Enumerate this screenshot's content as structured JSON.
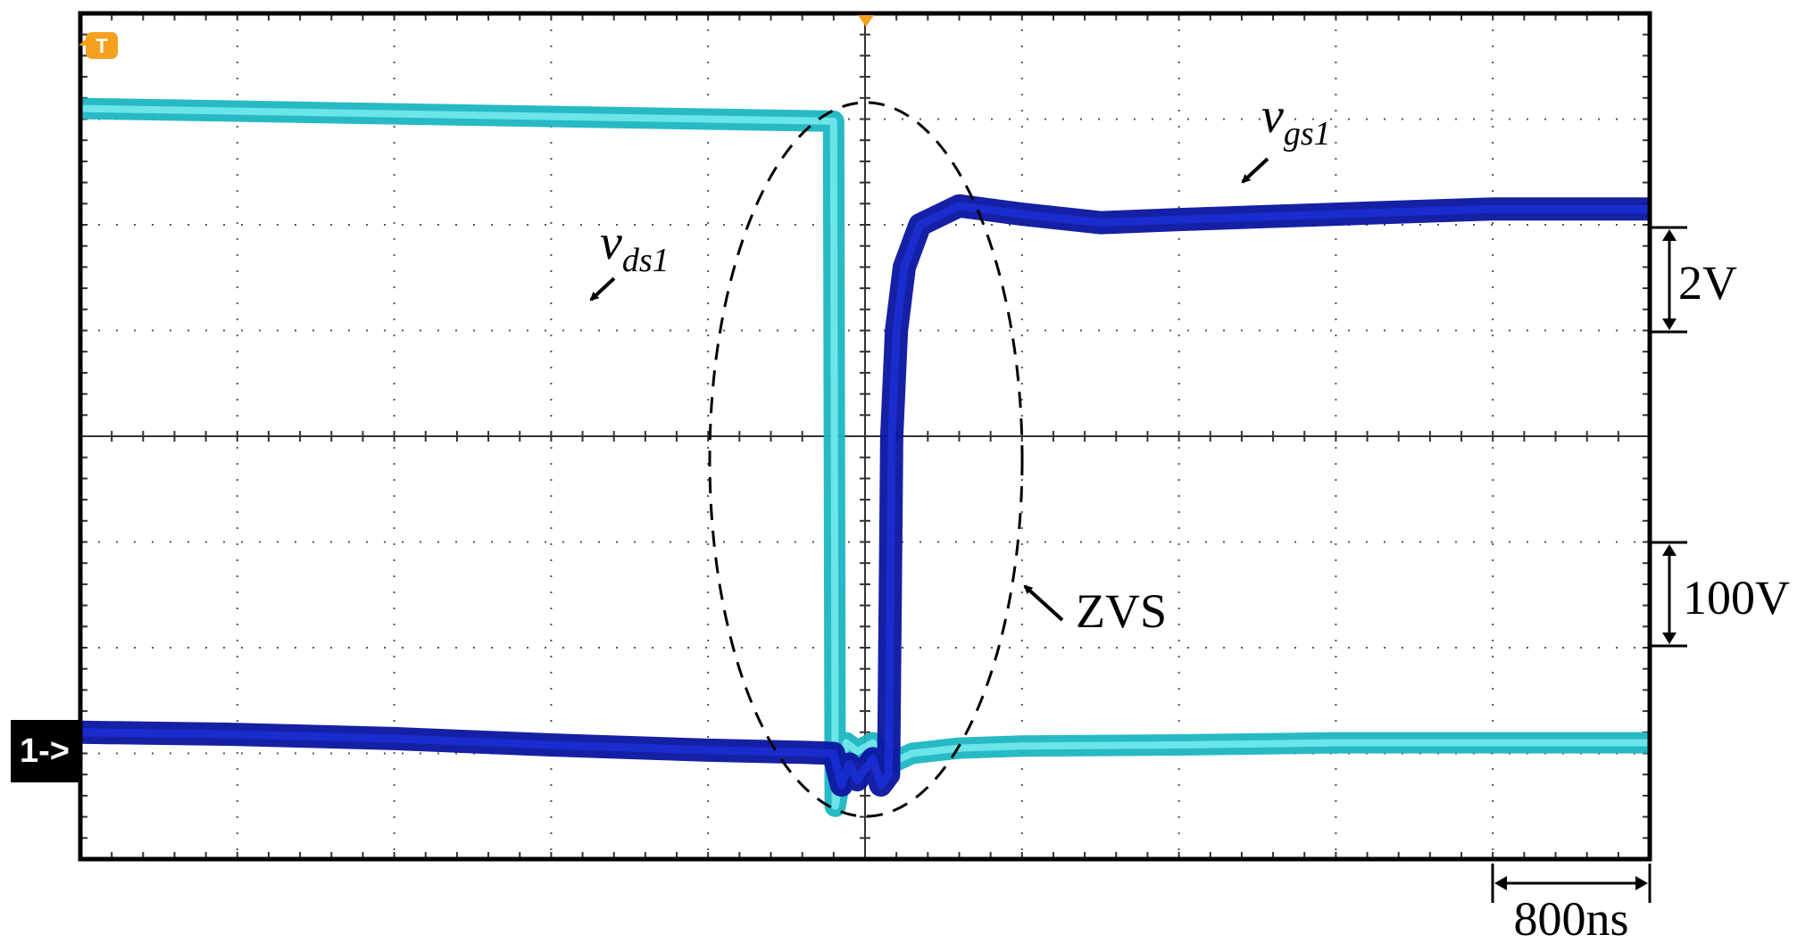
{
  "chart_data": {
    "type": "line",
    "title": "",
    "xlabel": "",
    "ylabel": "",
    "grid": true,
    "x_divisions": 10,
    "y_divisions": 8,
    "trigger_marker": "T",
    "channel_marker": "1->",
    "colors": {
      "vgs": "#0a14a0",
      "vgs_core": "#1a2fd8",
      "vds": "#1bb6c2",
      "vds_core": "#7ef0f0",
      "frame": "#000000",
      "grid": "#555555",
      "trigger": "#f5a01e"
    },
    "series": [
      {
        "name": "vds1",
        "label": {
          "base": "v",
          "sub": "ds1"
        },
        "unit_div": "100V",
        "points": [
          [
            0,
            3.1
          ],
          [
            2,
            3.05
          ],
          [
            4,
            3.0
          ],
          [
            4.8,
            2.98
          ],
          [
            4.81,
            -3.5
          ],
          [
            4.88,
            -2.9
          ],
          [
            4.95,
            -2.98
          ],
          [
            5.05,
            -2.9
          ],
          [
            5.15,
            -3.1
          ],
          [
            5.3,
            -3.0
          ],
          [
            5.6,
            -2.95
          ],
          [
            6,
            -2.93
          ],
          [
            7,
            -2.92
          ],
          [
            8,
            -2.9
          ],
          [
            9,
            -2.9
          ],
          [
            10,
            -2.9
          ]
        ]
      },
      {
        "name": "vgs1",
        "label": {
          "base": "v",
          "sub": "gs1"
        },
        "unit_div": "2V",
        "points": [
          [
            0,
            -2.8
          ],
          [
            1,
            -2.82
          ],
          [
            2,
            -2.86
          ],
          [
            3,
            -2.92
          ],
          [
            4,
            -2.97
          ],
          [
            4.6,
            -2.99
          ],
          [
            4.8,
            -3.0
          ],
          [
            4.85,
            -3.3
          ],
          [
            4.9,
            -3.1
          ],
          [
            4.95,
            -3.25
          ],
          [
            5.05,
            -3.05
          ],
          [
            5.1,
            -3.3
          ],
          [
            5.15,
            -3.2
          ],
          [
            5.17,
            0.0
          ],
          [
            5.2,
            1.0
          ],
          [
            5.25,
            1.6
          ],
          [
            5.35,
            2.0
          ],
          [
            5.6,
            2.18
          ],
          [
            6.0,
            2.1
          ],
          [
            6.5,
            2.02
          ],
          [
            7,
            2.05
          ],
          [
            8,
            2.1
          ],
          [
            9,
            2.15
          ],
          [
            10,
            2.15
          ]
        ]
      }
    ],
    "annotations": {
      "zvs": "ZVS",
      "scale_time": "800ns",
      "scale_vgs": "2V",
      "scale_vds": "100V"
    }
  }
}
